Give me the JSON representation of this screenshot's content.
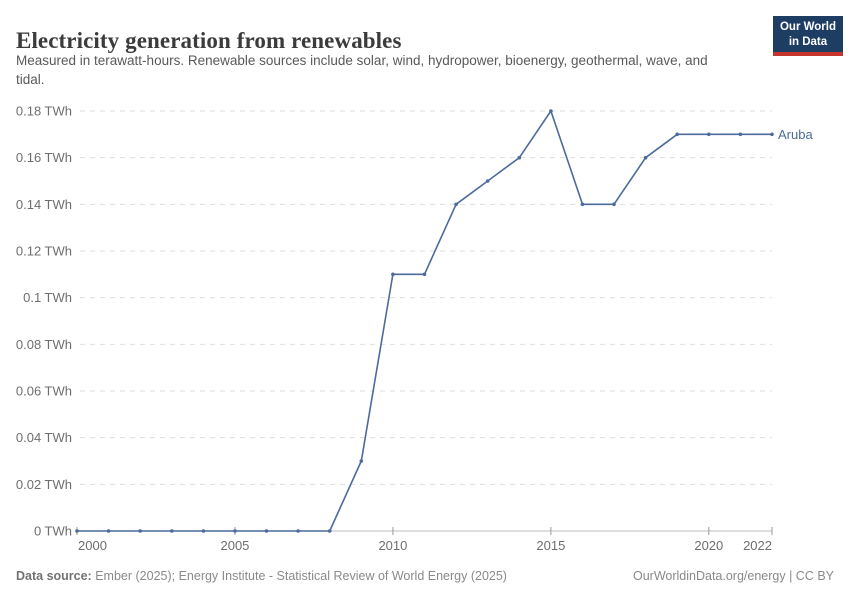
{
  "header": {
    "title": "Electricity generation from renewables",
    "subtitle": "Measured in terawatt-hours. Renewable sources include solar, wind, hydropower, bioenergy, geothermal, wave, and tidal.",
    "logo_line1": "Our World",
    "logo_line2": "in Data"
  },
  "footer": {
    "source_label": "Data source:",
    "source_text": " Ember (2025); Energy Institute - Statistical Review of World Energy (2025)",
    "credit": "OurWorldinData.org/energy | CC BY"
  },
  "colors": {
    "line": "#4c6a9c",
    "grid": "#dedede",
    "axis": "#bcbcbc",
    "tick": "#9a9a9a",
    "tick_label": "#6e6e6e",
    "logo_navy": "#1d3d63",
    "logo_red": "#c5352b"
  },
  "chart_data": {
    "type": "line",
    "title": "Electricity generation from renewables",
    "unit": "TWh",
    "xlim": [
      2000,
      2022
    ],
    "ylim": [
      0,
      0.18
    ],
    "grid": "horizontal-dashed",
    "legend_position": "end-of-line-label",
    "x": [
      2000,
      2001,
      2002,
      2003,
      2004,
      2005,
      2006,
      2007,
      2008,
      2009,
      2010,
      2011,
      2012,
      2013,
      2014,
      2015,
      2016,
      2017,
      2018,
      2019,
      2020,
      2021,
      2022
    ],
    "series": [
      {
        "name": "Aruba",
        "color": "#4c6a9c",
        "values": [
          0,
          0,
          0,
          0,
          0,
          0,
          0,
          0,
          0,
          0.03,
          0.11,
          0.11,
          0.14,
          0.15,
          0.16,
          0.18,
          0.14,
          0.14,
          0.16,
          0.17,
          0.17,
          0.17,
          0.17
        ]
      }
    ],
    "x_ticks": [
      2000,
      2005,
      2010,
      2015,
      2020,
      2022
    ],
    "x_tick_labels": [
      "2000",
      "2005",
      "2010",
      "2015",
      "2020",
      "2022"
    ],
    "y_tick_values": [
      0,
      0.02,
      0.04,
      0.06,
      0.08,
      0.1,
      0.12,
      0.14,
      0.16,
      0.18
    ],
    "y_tick_labels": [
      "0 TWh",
      "0.02 TWh",
      "0.04 TWh",
      "0.06 TWh",
      "0.08 TWh",
      "0.1 TWh",
      "0.12 TWh",
      "0.14 TWh",
      "0.16 TWh",
      "0.18 TWh"
    ]
  }
}
